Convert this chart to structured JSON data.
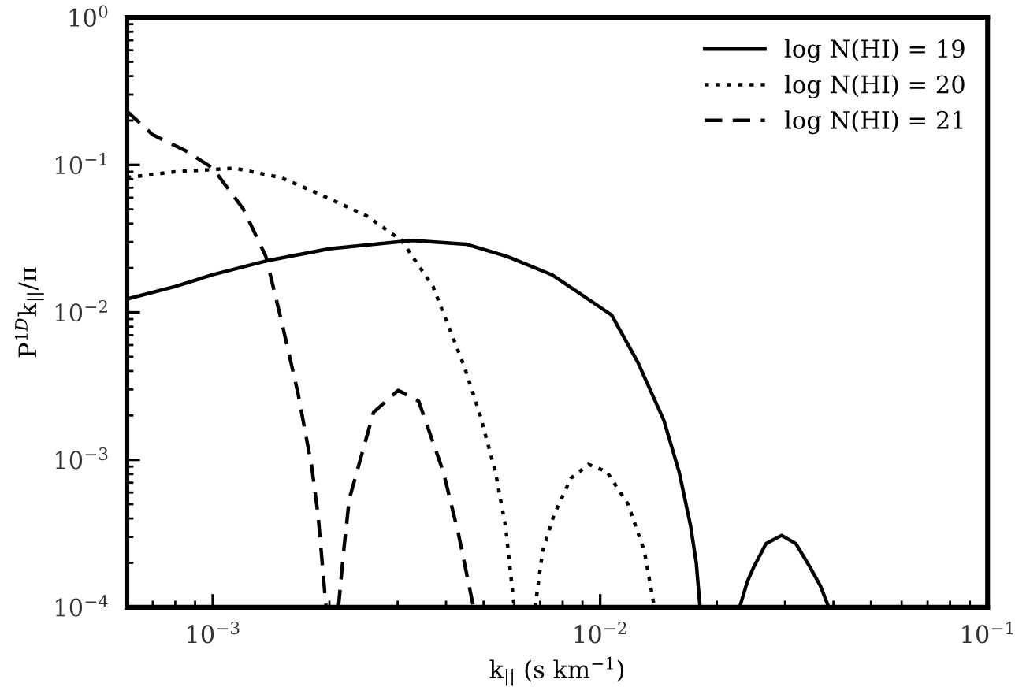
{
  "chart_data": {
    "type": "line",
    "xlabel": "k$_{||}$ (s km$^{−1}$)",
    "ylabel": "P$^{1D}$k$_{||}$/π",
    "log": "xy",
    "grid": false,
    "legend": "top right",
    "xlim": [
      0.0006,
      0.1
    ],
    "ylim": [
      0.0001,
      1
    ],
    "xticks": [
      {
        "value": 0.001,
        "label": "10$^{−3}$"
      },
      {
        "value": 0.01,
        "label": "10$^{−2}$"
      },
      {
        "value": 0.1,
        "label": "10$^{−1}$"
      }
    ],
    "yticks": [
      {
        "value": 0.0001,
        "label": "10$^{−4}$"
      },
      {
        "value": 0.001,
        "label": "10$^{−3}$"
      },
      {
        "value": 0.01,
        "label": "10$^{−2}$"
      },
      {
        "value": 0.1,
        "label": "10$^{−1}$"
      },
      {
        "value": 1,
        "label": "10$^{0}$"
      }
    ],
    "series": [
      {
        "name": "log N(HI) = 19",
        "color": "#000000",
        "line_style": "solid",
        "x": [
          0.0006,
          0.0008,
          0.001,
          0.00137,
          0.002,
          0.00327,
          0.0045,
          0.00574,
          0.0075,
          0.0107,
          0.0125,
          0.0146,
          0.016,
          0.0171,
          0.0177,
          0.0181,
          0.0205,
          0.0229,
          0.024,
          0.0249,
          0.0268,
          0.0294,
          0.032,
          0.0348,
          0.037,
          0.0389
        ],
        "values": [
          0.0123,
          0.015,
          0.018,
          0.0223,
          0.027,
          0.0307,
          0.029,
          0.024,
          0.018,
          0.0096,
          0.0046,
          0.00185,
          0.00082,
          0.00036,
          0.0002,
          0.0001,
          null,
          0.0001,
          0.00015,
          0.000187,
          0.00027,
          0.000307,
          0.00027,
          0.000187,
          0.00014,
          0.0001
        ]
      },
      {
        "name": "log N(HI) = 20",
        "color": "#000000",
        "line_style": "dotted",
        "x": [
          0.0006,
          0.0008,
          0.00114,
          0.0015,
          0.00187,
          0.0025,
          0.00307,
          0.0037,
          0.00446,
          0.0049,
          0.00537,
          0.0057,
          0.006,
          0.0064,
          0.00679,
          0.0071,
          0.00759,
          0.0084,
          0.00933,
          0.0104,
          0.0118,
          0.013,
          0.0138
        ],
        "values": [
          0.082,
          0.09,
          0.095,
          0.082,
          0.064,
          0.045,
          0.0307,
          0.015,
          0.00428,
          0.002,
          0.00082,
          0.00035,
          0.0001,
          null,
          0.0001,
          0.00024,
          0.00042,
          0.00075,
          0.00093,
          0.00083,
          0.0005,
          0.00024,
          0.0001
        ]
      },
      {
        "name": "log N(HI) = 21",
        "color": "#000000",
        "line_style": "dashed",
        "x": [
          0.0006,
          0.0007,
          0.00085,
          0.001,
          0.0012,
          0.00137,
          0.0015,
          0.00166,
          0.0018,
          0.00187,
          0.00196,
          0.002,
          0.00211,
          0.00218,
          0.00225,
          0.0026,
          0.00301,
          0.0034,
          0.00394,
          0.0043,
          0.00471
        ],
        "values": [
          0.231,
          0.16,
          0.125,
          0.095,
          0.05,
          0.024,
          0.009,
          0.00281,
          0.0009,
          0.00042,
          0.0001,
          null,
          0.0001,
          0.00025,
          0.00054,
          0.0021,
          0.00296,
          0.0025,
          0.00082,
          0.00032,
          0.0001
        ]
      }
    ]
  }
}
